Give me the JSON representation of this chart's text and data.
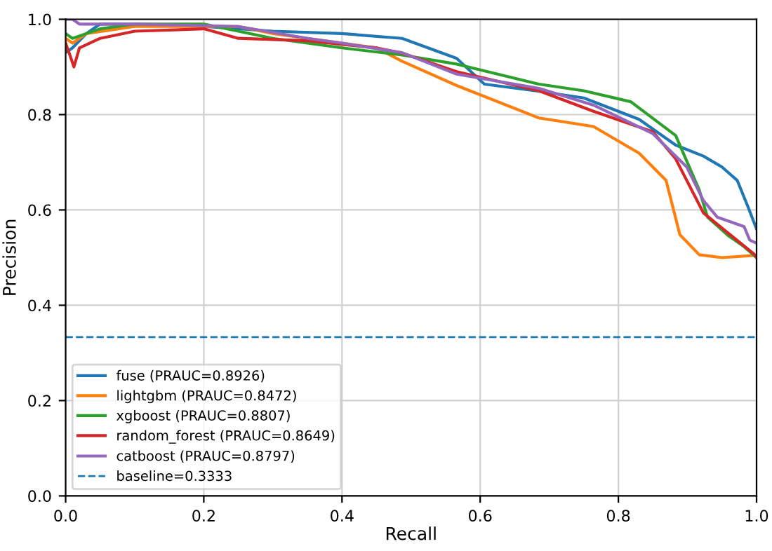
{
  "chart_data": {
    "type": "line",
    "xlabel": "Recall",
    "ylabel": "Precision",
    "xlim": [
      0,
      1
    ],
    "ylim": [
      0,
      1
    ],
    "xticks": [
      {
        "value": 0,
        "label": "0.0"
      },
      {
        "value": 0.2,
        "label": "0.2"
      },
      {
        "value": 0.4,
        "label": "0.4"
      },
      {
        "value": 0.6,
        "label": "0.6"
      },
      {
        "value": 0.8,
        "label": "0.8"
      },
      {
        "value": 1,
        "label": "1.0"
      }
    ],
    "yticks": [
      {
        "value": 0,
        "label": "0.0"
      },
      {
        "value": 0.2,
        "label": "0.2"
      },
      {
        "value": 0.4,
        "label": "0.4"
      },
      {
        "value": 0.6,
        "label": "0.6"
      },
      {
        "value": 0.8,
        "label": "0.8"
      },
      {
        "value": 1,
        "label": "1.0"
      }
    ],
    "grid": true,
    "legend": "bottom left",
    "marker": "none",
    "line_style": "solid",
    "series": [
      {
        "name": "fuse (PRAUC=0.8926)",
        "color": "#1f77b4",
        "x": [
          0,
          0.01,
          0.03,
          0.05,
          0.1,
          0.2,
          0.3,
          0.4,
          0.487,
          0.566,
          0.606,
          0.68,
          0.75,
          0.83,
          0.883,
          0.923,
          0.95,
          0.972,
          0.988,
          1.0
        ],
        "values": [
          0.93,
          0.94,
          0.97,
          0.99,
          0.99,
          0.985,
          0.975,
          0.97,
          0.96,
          0.918,
          0.864,
          0.85,
          0.835,
          0.79,
          0.736,
          0.713,
          0.69,
          0.662,
          0.605,
          0.56
        ]
      },
      {
        "name": "lightgbm (PRAUC=0.8472)",
        "color": "#ff7f0e",
        "x": [
          0,
          0.01,
          0.03,
          0.1,
          0.2,
          0.25,
          0.3,
          0.4,
          0.45,
          0.487,
          0.566,
          0.685,
          0.764,
          0.83,
          0.869,
          0.889,
          0.917,
          0.95,
          1.0
        ],
        "values": [
          0.96,
          0.95,
          0.97,
          0.985,
          0.985,
          0.985,
          0.97,
          0.95,
          0.94,
          0.912,
          0.861,
          0.793,
          0.775,
          0.719,
          0.662,
          0.548,
          0.506,
          0.5,
          0.505
        ]
      },
      {
        "name": "xgboost (PRAUC=0.8807)",
        "color": "#2ca02c",
        "x": [
          0,
          0.01,
          0.05,
          0.1,
          0.2,
          0.25,
          0.3,
          0.4,
          0.487,
          0.566,
          0.685,
          0.75,
          0.818,
          0.883,
          0.917,
          0.929,
          0.96,
          0.982,
          1.0
        ],
        "values": [
          0.97,
          0.96,
          0.98,
          0.99,
          0.99,
          0.975,
          0.96,
          0.94,
          0.925,
          0.906,
          0.864,
          0.85,
          0.827,
          0.756,
          0.642,
          0.585,
          0.545,
          0.523,
          0.5
        ]
      },
      {
        "name": "random_forest (PRAUC=0.8649)",
        "color": "#d62728",
        "x": [
          0,
          0.005,
          0.012,
          0.02,
          0.05,
          0.1,
          0.2,
          0.25,
          0.35,
          0.45,
          0.487,
          0.566,
          0.685,
          0.764,
          0.85,
          0.883,
          0.923,
          0.96,
          0.996,
          1.0
        ],
        "values": [
          0.95,
          0.93,
          0.9,
          0.94,
          0.96,
          0.975,
          0.98,
          0.96,
          0.955,
          0.94,
          0.929,
          0.89,
          0.85,
          0.807,
          0.764,
          0.707,
          0.594,
          0.55,
          0.508,
          0.5
        ]
      },
      {
        "name": "catboost (PRAUC=0.8797)",
        "color": "#9467bd",
        "x": [
          0,
          0.01,
          0.02,
          0.1,
          0.25,
          0.35,
          0.4,
          0.487,
          0.566,
          0.685,
          0.764,
          0.85,
          0.899,
          0.923,
          0.943,
          0.982,
          0.99,
          1.0
        ],
        "values": [
          1.0,
          1.0,
          0.99,
          0.99,
          0.985,
          0.96,
          0.95,
          0.93,
          0.885,
          0.855,
          0.82,
          0.76,
          0.69,
          0.62,
          0.585,
          0.565,
          0.537,
          0.53
        ]
      }
    ],
    "ref_lines": [
      {
        "axis": "y",
        "value": 0.3333,
        "label": "baseline=0.3333",
        "color": "#1f77b4",
        "line_style": "dashed"
      }
    ]
  }
}
